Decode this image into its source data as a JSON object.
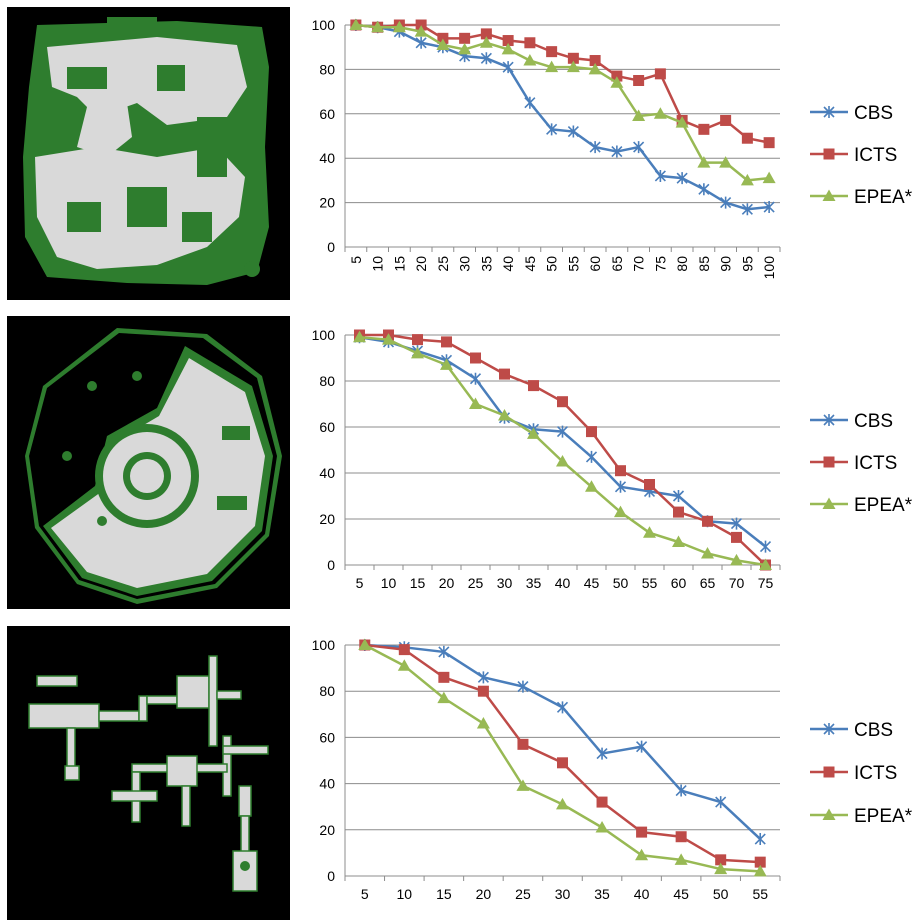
{
  "colors": {
    "cbs": "#4A7EBB",
    "icts": "#BE4B48",
    "epea": "#98B954",
    "grid": "#8C8C8C",
    "map_floor": "#D9D9D9",
    "map_wall": "#2E7D2E",
    "map_background": "#000000"
  },
  "chart_data": [
    {
      "type": "line",
      "x": [
        5,
        10,
        15,
        20,
        25,
        30,
        35,
        40,
        45,
        50,
        55,
        60,
        65,
        70,
        75,
        80,
        85,
        90,
        95,
        100
      ],
      "xticks_rotated": true,
      "ylim": [
        0,
        100
      ],
      "yticks": [
        0,
        20,
        40,
        60,
        80,
        100
      ],
      "grid": true,
      "legend": "right",
      "series": [
        {
          "name": "CBS",
          "marker": "asterisk",
          "values": [
            100,
            99,
            97,
            92,
            90,
            86,
            85,
            81,
            65,
            53,
            52,
            45,
            43,
            45,
            32,
            31,
            26,
            20,
            17,
            18
          ]
        },
        {
          "name": "ICTS",
          "marker": "square",
          "values": [
            100,
            99,
            100,
            100,
            94,
            94,
            96,
            93,
            92,
            88,
            85,
            84,
            77,
            75,
            78,
            57,
            53,
            57,
            49,
            47
          ]
        },
        {
          "name": "EPEA*",
          "marker": "triangle",
          "values": [
            100,
            99,
            99,
            97,
            91,
            89,
            92,
            89,
            84,
            81,
            81,
            80,
            74,
            59,
            60,
            56,
            38,
            38,
            30,
            31
          ]
        }
      ]
    },
    {
      "type": "line",
      "x": [
        5,
        10,
        15,
        20,
        25,
        30,
        35,
        40,
        45,
        50,
        55,
        60,
        65,
        70,
        75
      ],
      "xticks_rotated": false,
      "ylim": [
        0,
        100
      ],
      "yticks": [
        0,
        20,
        40,
        60,
        80,
        100
      ],
      "grid": true,
      "legend": "right",
      "series": [
        {
          "name": "CBS",
          "marker": "asterisk",
          "values": [
            99,
            97,
            93,
            89,
            81,
            64,
            59,
            58,
            47,
            34,
            32,
            30,
            19,
            18,
            8
          ]
        },
        {
          "name": "ICTS",
          "marker": "square",
          "values": [
            100,
            100,
            98,
            97,
            90,
            83,
            78,
            71,
            58,
            41,
            35,
            23,
            19,
            12,
            0
          ]
        },
        {
          "name": "EPEA*",
          "marker": "triangle",
          "values": [
            99,
            98,
            92,
            87,
            70,
            65,
            57,
            45,
            34,
            23,
            14,
            10,
            5,
            2,
            0
          ]
        }
      ]
    },
    {
      "type": "line",
      "x": [
        5,
        10,
        15,
        20,
        25,
        30,
        35,
        40,
        45,
        50,
        55
      ],
      "xticks_rotated": false,
      "ylim": [
        0,
        100
      ],
      "yticks": [
        0,
        20,
        40,
        60,
        80,
        100
      ],
      "grid": true,
      "legend": "right",
      "series": [
        {
          "name": "CBS",
          "marker": "asterisk",
          "values": [
            100,
            99,
            97,
            86,
            82,
            73,
            53,
            56,
            37,
            32,
            16
          ]
        },
        {
          "name": "ICTS",
          "marker": "square",
          "values": [
            100,
            98,
            86,
            80,
            57,
            49,
            32,
            19,
            17,
            7,
            6
          ]
        },
        {
          "name": "EPEA*",
          "marker": "triangle",
          "values": [
            100,
            91,
            77,
            66,
            39,
            31,
            21,
            9,
            7,
            3,
            2
          ]
        }
      ]
    }
  ]
}
